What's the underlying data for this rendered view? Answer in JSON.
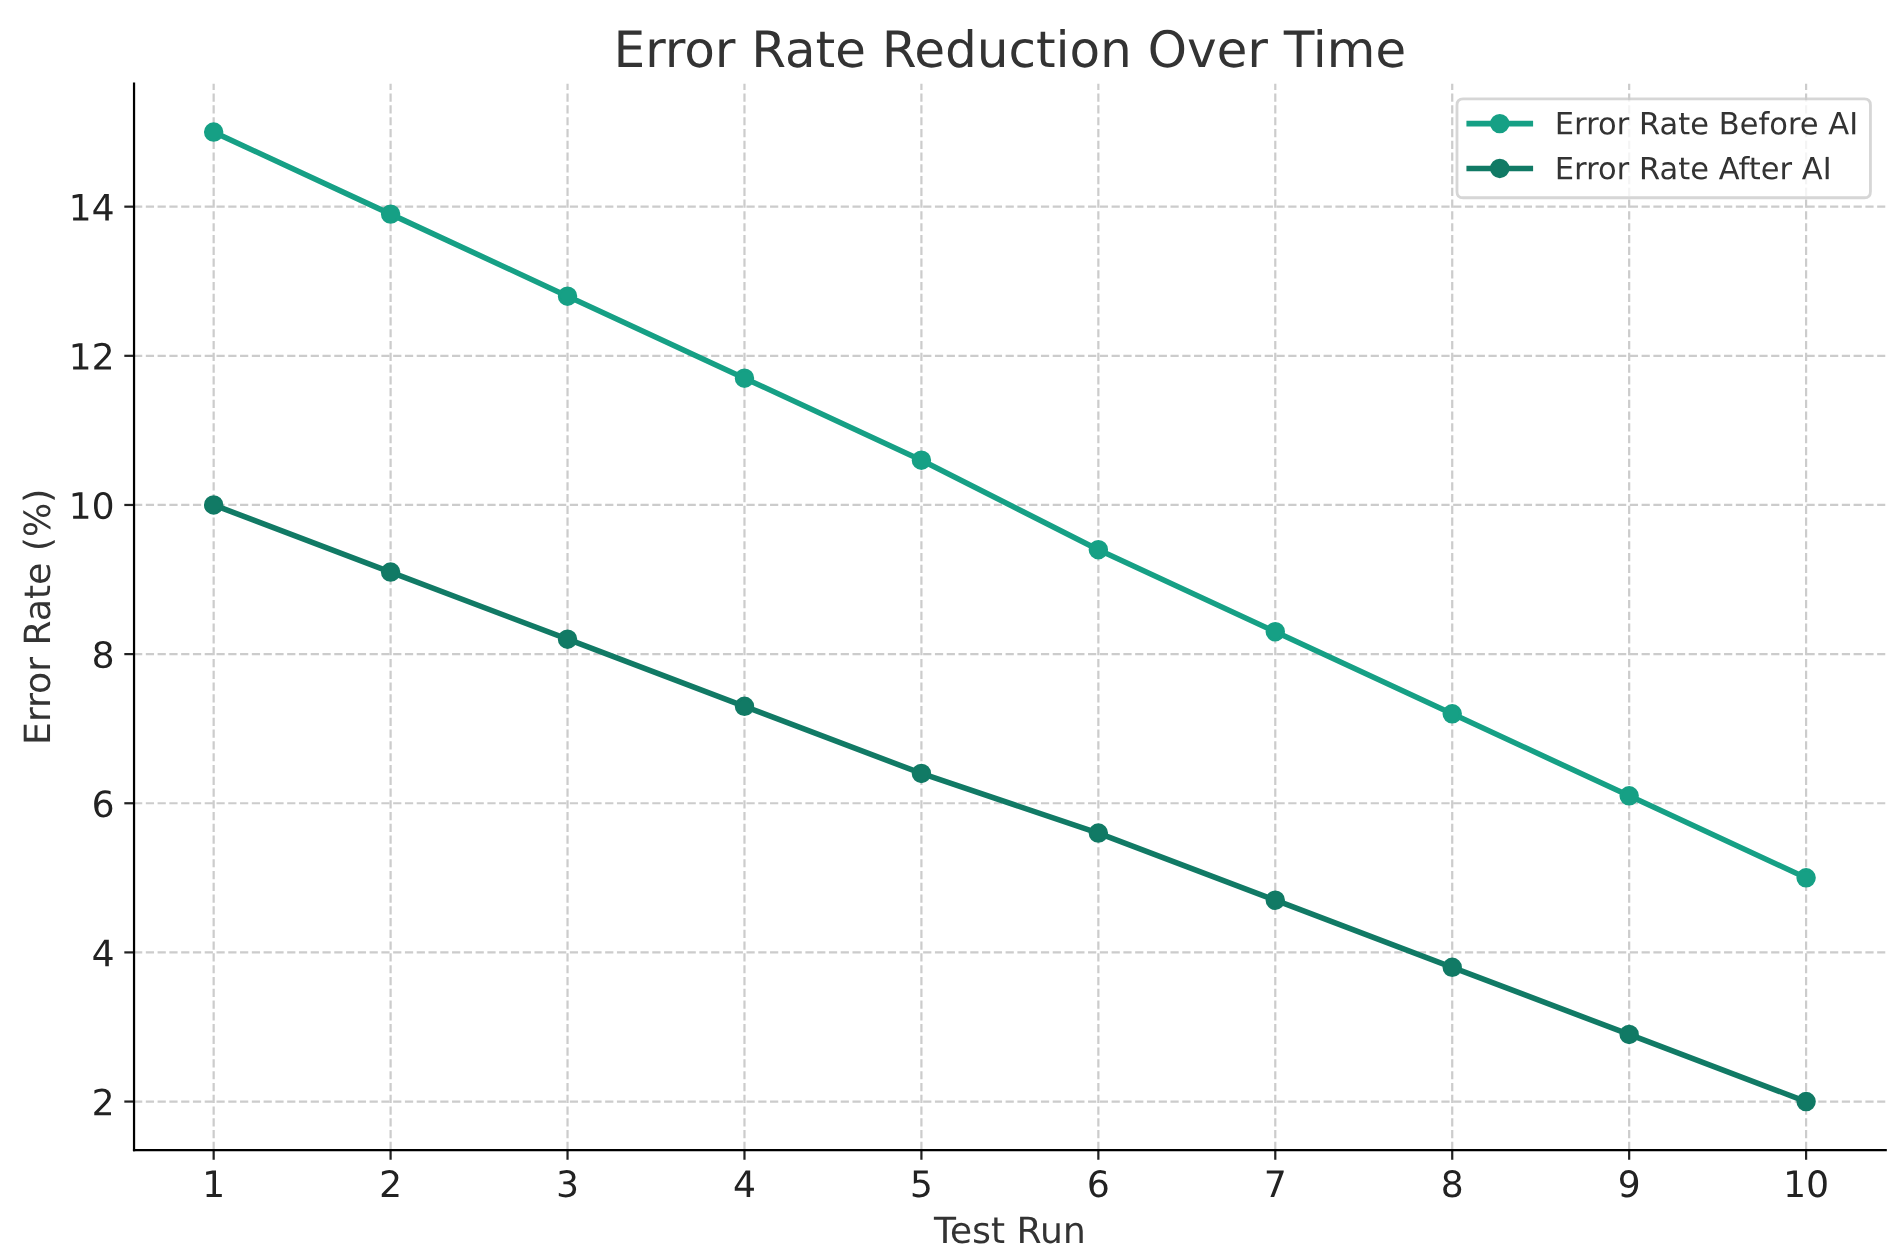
{
  "chart_data": {
    "type": "line",
    "title": "Error Rate Reduction Over Time",
    "xlabel": "Test Run",
    "ylabel": "Error Rate (%)",
    "x": [
      1,
      2,
      3,
      4,
      5,
      6,
      7,
      8,
      9,
      10
    ],
    "series": [
      {
        "name": "Error Rate Before AI",
        "color": "#16a085",
        "values": [
          15.0,
          13.9,
          12.8,
          11.7,
          10.6,
          9.4,
          8.3,
          7.2,
          6.1,
          5.0
        ]
      },
      {
        "name": "Error Rate After AI",
        "color": "#117a65",
        "values": [
          10.0,
          9.1,
          8.2,
          7.3,
          6.4,
          5.6,
          4.7,
          3.8,
          2.9,
          2.0
        ]
      }
    ],
    "xlim": [
      0.55,
      10.45
    ],
    "xticks": [
      1,
      2,
      3,
      4,
      5,
      6,
      7,
      8,
      9,
      10
    ],
    "ylim": [
      1.35,
      15.65
    ],
    "yticks": [
      2,
      4,
      6,
      8,
      10,
      12,
      14
    ],
    "grid": true,
    "legend": "top right",
    "marker": "circle",
    "line_style": "solid"
  }
}
